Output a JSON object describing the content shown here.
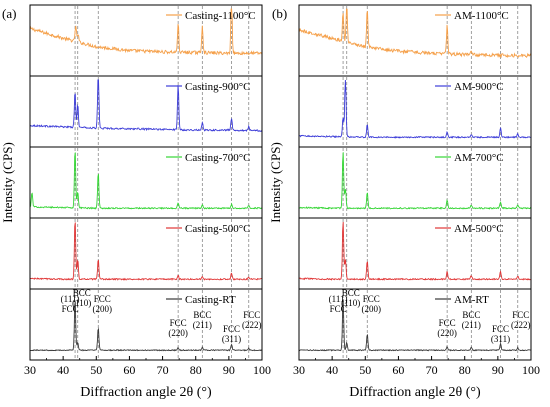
{
  "chart_data": [
    {
      "panel_label": "(a)",
      "type": "line",
      "xlabel": "Diffraction angle 2θ (°)",
      "ylabel": "Intensity (CPS)",
      "xlim": [
        30,
        100
      ],
      "xticks": [
        "30",
        "40",
        "50",
        "60",
        "70",
        "80",
        "90",
        "100"
      ],
      "reference_lines": [
        43.6,
        44.4,
        50.6,
        74.7,
        82.0,
        90.8,
        96.0
      ],
      "peak_annotations": [
        {
          "label": "(111)\nFCC",
          "x": 43.6
        },
        {
          "label": "BCC\n(110)",
          "x": 44.4
        },
        {
          "label": "FCC\n(200)",
          "x": 50.6
        },
        {
          "label": "FCC\n(220)",
          "x": 74.7
        },
        {
          "label": "BCC\n(211)",
          "x": 82.0
        },
        {
          "label": "FCC\n(311)",
          "x": 90.8
        },
        {
          "label": "FCC\n(222)",
          "x": 96.0
        }
      ],
      "series": [
        {
          "name": "Casting-1100°C",
          "color": "#f5a04a",
          "noise": 0.05,
          "baseline": [
            [
              30,
              0.7
            ],
            [
              40,
              0.55
            ],
            [
              50,
              0.42
            ],
            [
              60,
              0.36
            ],
            [
              70,
              0.34
            ],
            [
              80,
              0.33
            ],
            [
              90,
              0.32
            ],
            [
              100,
              0.32
            ]
          ],
          "peaks": [
            [
              43.8,
              0.25
            ],
            [
              44.5,
              0.12
            ],
            [
              74.7,
              0.45
            ],
            [
              82.0,
              0.42
            ],
            [
              90.8,
              0.95
            ]
          ]
        },
        {
          "name": "Casting-900°C",
          "color": "#3d3dd8",
          "noise": 0.025,
          "baseline": [
            [
              30,
              0.3
            ],
            [
              40,
              0.28
            ],
            [
              50,
              0.26
            ],
            [
              60,
              0.25
            ],
            [
              70,
              0.24
            ],
            [
              80,
              0.23
            ],
            [
              90,
              0.23
            ],
            [
              100,
              0.22
            ]
          ],
          "peaks": [
            [
              43.6,
              0.55
            ],
            [
              44.4,
              0.35
            ],
            [
              50.6,
              0.92
            ],
            [
              74.7,
              0.7
            ],
            [
              82.0,
              0.12
            ],
            [
              90.8,
              0.18
            ],
            [
              96.0,
              0.06
            ]
          ]
        },
        {
          "name": "Casting-700°C",
          "color": "#35d535",
          "noise": 0.02,
          "baseline": [
            [
              30,
              0.14
            ],
            [
              40,
              0.13
            ],
            [
              50,
              0.12
            ],
            [
              60,
              0.12
            ],
            [
              70,
              0.12
            ],
            [
              80,
              0.12
            ],
            [
              90,
              0.12
            ],
            [
              100,
              0.12
            ]
          ],
          "peaks": [
            [
              30.6,
              0.22
            ],
            [
              43.6,
              0.9
            ],
            [
              44.4,
              0.25
            ],
            [
              50.6,
              0.55
            ],
            [
              74.7,
              0.08
            ],
            [
              82.0,
              0.06
            ],
            [
              90.8,
              0.06
            ],
            [
              96.0,
              0.04
            ]
          ]
        },
        {
          "name": "Casting-500°C",
          "color": "#e03535",
          "noise": 0.02,
          "baseline": [
            [
              30,
              0.13
            ],
            [
              40,
              0.12
            ],
            [
              50,
              0.12
            ],
            [
              60,
              0.12
            ],
            [
              70,
              0.12
            ],
            [
              80,
              0.12
            ],
            [
              90,
              0.12
            ],
            [
              100,
              0.12
            ]
          ],
          "peaks": [
            [
              43.6,
              0.92
            ],
            [
              44.4,
              0.3
            ],
            [
              50.6,
              0.3
            ],
            [
              74.7,
              0.06
            ],
            [
              82.0,
              0.05
            ],
            [
              90.8,
              0.1
            ],
            [
              96.0,
              0.04
            ]
          ]
        },
        {
          "name": "Casting-RT",
          "color": "#3a3a3a",
          "noise": 0.015,
          "baseline": [
            [
              30,
              0.12
            ],
            [
              40,
              0.12
            ],
            [
              50,
              0.12
            ],
            [
              60,
              0.12
            ],
            [
              70,
              0.12
            ],
            [
              80,
              0.12
            ],
            [
              90,
              0.12
            ],
            [
              100,
              0.12
            ]
          ],
          "peaks": [
            [
              43.6,
              0.78
            ],
            [
              44.4,
              0.12
            ],
            [
              50.6,
              0.35
            ],
            [
              74.7,
              0.04
            ],
            [
              82.0,
              0.04
            ],
            [
              90.8,
              0.09
            ],
            [
              96.0,
              0.03
            ]
          ]
        }
      ]
    },
    {
      "panel_label": "(b)",
      "type": "line",
      "xlabel": "Diffraction angle 2θ (°)",
      "ylabel": "Intensity (CPS)",
      "xlim": [
        30,
        100
      ],
      "xticks": [
        "30",
        "40",
        "50",
        "60",
        "70",
        "80",
        "90",
        "100"
      ],
      "reference_lines": [
        43.3,
        44.4,
        50.6,
        74.7,
        82.0,
        90.8,
        96.0
      ],
      "peak_annotations": [
        {
          "label": "(111)\nFCC",
          "x": 43.3
        },
        {
          "label": "BCC\n(110)",
          "x": 44.4
        },
        {
          "label": "FCC\n(200)",
          "x": 50.6
        },
        {
          "label": "FCC\n(220)",
          "x": 74.7
        },
        {
          "label": "BCC\n(211)",
          "x": 82.0
        },
        {
          "label": "FCC\n(311)",
          "x": 90.8
        },
        {
          "label": "FCC\n(222)",
          "x": 96.0
        }
      ],
      "series": [
        {
          "name": "AM-1100°C",
          "color": "#f5a04a",
          "noise": 0.05,
          "baseline": [
            [
              30,
              0.68
            ],
            [
              40,
              0.55
            ],
            [
              50,
              0.42
            ],
            [
              60,
              0.35
            ],
            [
              70,
              0.32
            ],
            [
              80,
              0.3
            ],
            [
              90,
              0.29
            ],
            [
              100,
              0.28
            ]
          ],
          "peaks": [
            [
              43.3,
              0.45
            ],
            [
              44.4,
              0.55
            ],
            [
              50.6,
              0.6
            ],
            [
              74.7,
              0.45
            ],
            [
              82.0,
              0.06
            ]
          ]
        },
        {
          "name": "AM-900°C",
          "color": "#3d3dd8",
          "noise": 0.02,
          "baseline": [
            [
              30,
              0.14
            ],
            [
              40,
              0.13
            ],
            [
              50,
              0.12
            ],
            [
              60,
              0.12
            ],
            [
              70,
              0.12
            ],
            [
              80,
              0.12
            ],
            [
              90,
              0.12
            ],
            [
              100,
              0.12
            ]
          ],
          "peaks": [
            [
              43.3,
              0.3
            ],
            [
              44.0,
              0.92
            ],
            [
              50.6,
              0.2
            ],
            [
              74.7,
              0.08
            ],
            [
              82.0,
              0.04
            ],
            [
              90.8,
              0.14
            ],
            [
              96.0,
              0.05
            ]
          ]
        },
        {
          "name": "AM-700°C",
          "color": "#35d535",
          "noise": 0.02,
          "baseline": [
            [
              30,
              0.13
            ],
            [
              40,
              0.12
            ],
            [
              50,
              0.12
            ],
            [
              60,
              0.12
            ],
            [
              70,
              0.12
            ],
            [
              80,
              0.12
            ],
            [
              90,
              0.12
            ],
            [
              100,
              0.12
            ]
          ],
          "peaks": [
            [
              43.3,
              0.88
            ],
            [
              44.0,
              0.3
            ],
            [
              50.6,
              0.25
            ],
            [
              74.7,
              0.12
            ],
            [
              82.0,
              0.05
            ],
            [
              90.8,
              0.1
            ],
            [
              96.0,
              0.05
            ]
          ]
        },
        {
          "name": "AM-500°C",
          "color": "#e03535",
          "noise": 0.02,
          "baseline": [
            [
              30,
              0.13
            ],
            [
              40,
              0.12
            ],
            [
              50,
              0.12
            ],
            [
              60,
              0.12
            ],
            [
              70,
              0.12
            ],
            [
              80,
              0.12
            ],
            [
              90,
              0.12
            ],
            [
              100,
              0.12
            ]
          ],
          "peaks": [
            [
              43.3,
              0.92
            ],
            [
              44.0,
              0.3
            ],
            [
              50.6,
              0.28
            ],
            [
              74.7,
              0.12
            ],
            [
              82.0,
              0.06
            ],
            [
              90.8,
              0.12
            ],
            [
              96.0,
              0.05
            ]
          ]
        },
        {
          "name": "AM-RT",
          "color": "#3a3a3a",
          "noise": 0.015,
          "baseline": [
            [
              30,
              0.12
            ],
            [
              40,
              0.12
            ],
            [
              50,
              0.12
            ],
            [
              60,
              0.12
            ],
            [
              70,
              0.12
            ],
            [
              80,
              0.12
            ],
            [
              90,
              0.12
            ],
            [
              100,
              0.12
            ]
          ],
          "peaks": [
            [
              43.3,
              0.78
            ],
            [
              44.4,
              0.12
            ],
            [
              50.6,
              0.25
            ],
            [
              74.7,
              0.05
            ],
            [
              82.0,
              0.04
            ],
            [
              90.8,
              0.1
            ],
            [
              96.0,
              0.04
            ]
          ]
        }
      ]
    }
  ]
}
